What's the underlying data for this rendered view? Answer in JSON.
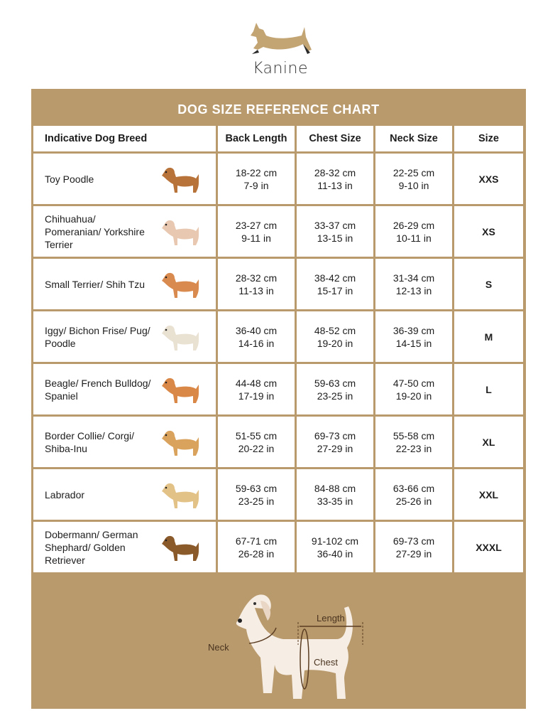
{
  "brand": {
    "name": "Kanine"
  },
  "chart": {
    "title": "DOG SIZE REFERENCE CHART",
    "headers": [
      "Indicative Dog Breed",
      "Back Length",
      "Chest Size",
      "Neck Size",
      "Size"
    ],
    "rows": [
      {
        "breed": "Toy Poodle",
        "back": [
          "18-22 cm",
          "7-9 in"
        ],
        "chest": [
          "28-32 cm",
          "11-13 in"
        ],
        "neck": [
          "22-25 cm",
          "9-10 in"
        ],
        "size": "XXS",
        "dog_color": "#b8733a"
      },
      {
        "breed": "Chihuahua/ Pomeranian/ Yorkshire Terrier",
        "back": [
          "23-27 cm",
          "9-11 in"
        ],
        "chest": [
          "33-37 cm",
          "13-15 in"
        ],
        "neck": [
          "26-29 cm",
          "10-11 in"
        ],
        "size": "XS",
        "dog_color": "#e8c8b0"
      },
      {
        "breed": "Small Terrier/ Shih Tzu",
        "back": [
          "28-32 cm",
          "11-13 in"
        ],
        "chest": [
          "38-42 cm",
          "15-17 in"
        ],
        "neck": [
          "31-34 cm",
          "12-13 in"
        ],
        "size": "S",
        "dog_color": "#d98a4f"
      },
      {
        "breed": "Iggy/ Bichon Frise/ Pug/ Poodle",
        "back": [
          "36-40 cm",
          "14-16 in"
        ],
        "chest": [
          "48-52 cm",
          "19-20 in"
        ],
        "neck": [
          "36-39 cm",
          "14-15 in"
        ],
        "size": "M",
        "dog_color": "#e9e1d2"
      },
      {
        "breed": "Beagle/ French Bulldog/ Spaniel",
        "back": [
          "44-48 cm",
          "17-19 in"
        ],
        "chest": [
          "59-63 cm",
          "23-25 in"
        ],
        "neck": [
          "47-50 cm",
          "19-20 in"
        ],
        "size": "L",
        "dog_color": "#d98848"
      },
      {
        "breed": "Border Collie/ Corgi/ Shiba-Inu",
        "back": [
          "51-55 cm",
          "20-22 in"
        ],
        "chest": [
          "69-73 cm",
          "27-29 in"
        ],
        "neck": [
          "55-58 cm",
          "22-23 in"
        ],
        "size": "XL",
        "dog_color": "#d9a35e"
      },
      {
        "breed": "Labrador",
        "back": [
          "59-63 cm",
          "23-25 in"
        ],
        "chest": [
          "84-88 cm",
          "33-35 in"
        ],
        "neck": [
          "63-66 cm",
          "25-26 in"
        ],
        "size": "XXL",
        "dog_color": "#e3c287"
      },
      {
        "breed": "Dobermann/ German Shephard/ Golden Retriever",
        "back": [
          "67-71 cm",
          "26-28 in"
        ],
        "chest": [
          "91-102 cm",
          "36-40 in"
        ],
        "neck": [
          "69-73 cm",
          "27-29 in"
        ],
        "size": "XXXL",
        "dog_color": "#8a5a2b"
      }
    ]
  },
  "diagram": {
    "labels": {
      "length": "Length",
      "neck": "Neck",
      "chest": "Chest"
    }
  },
  "colors": {
    "panel": "#b99a6c",
    "text": "#1d1d1d",
    "dog_body": "#f6ede4",
    "marker": "#5a3d22"
  }
}
